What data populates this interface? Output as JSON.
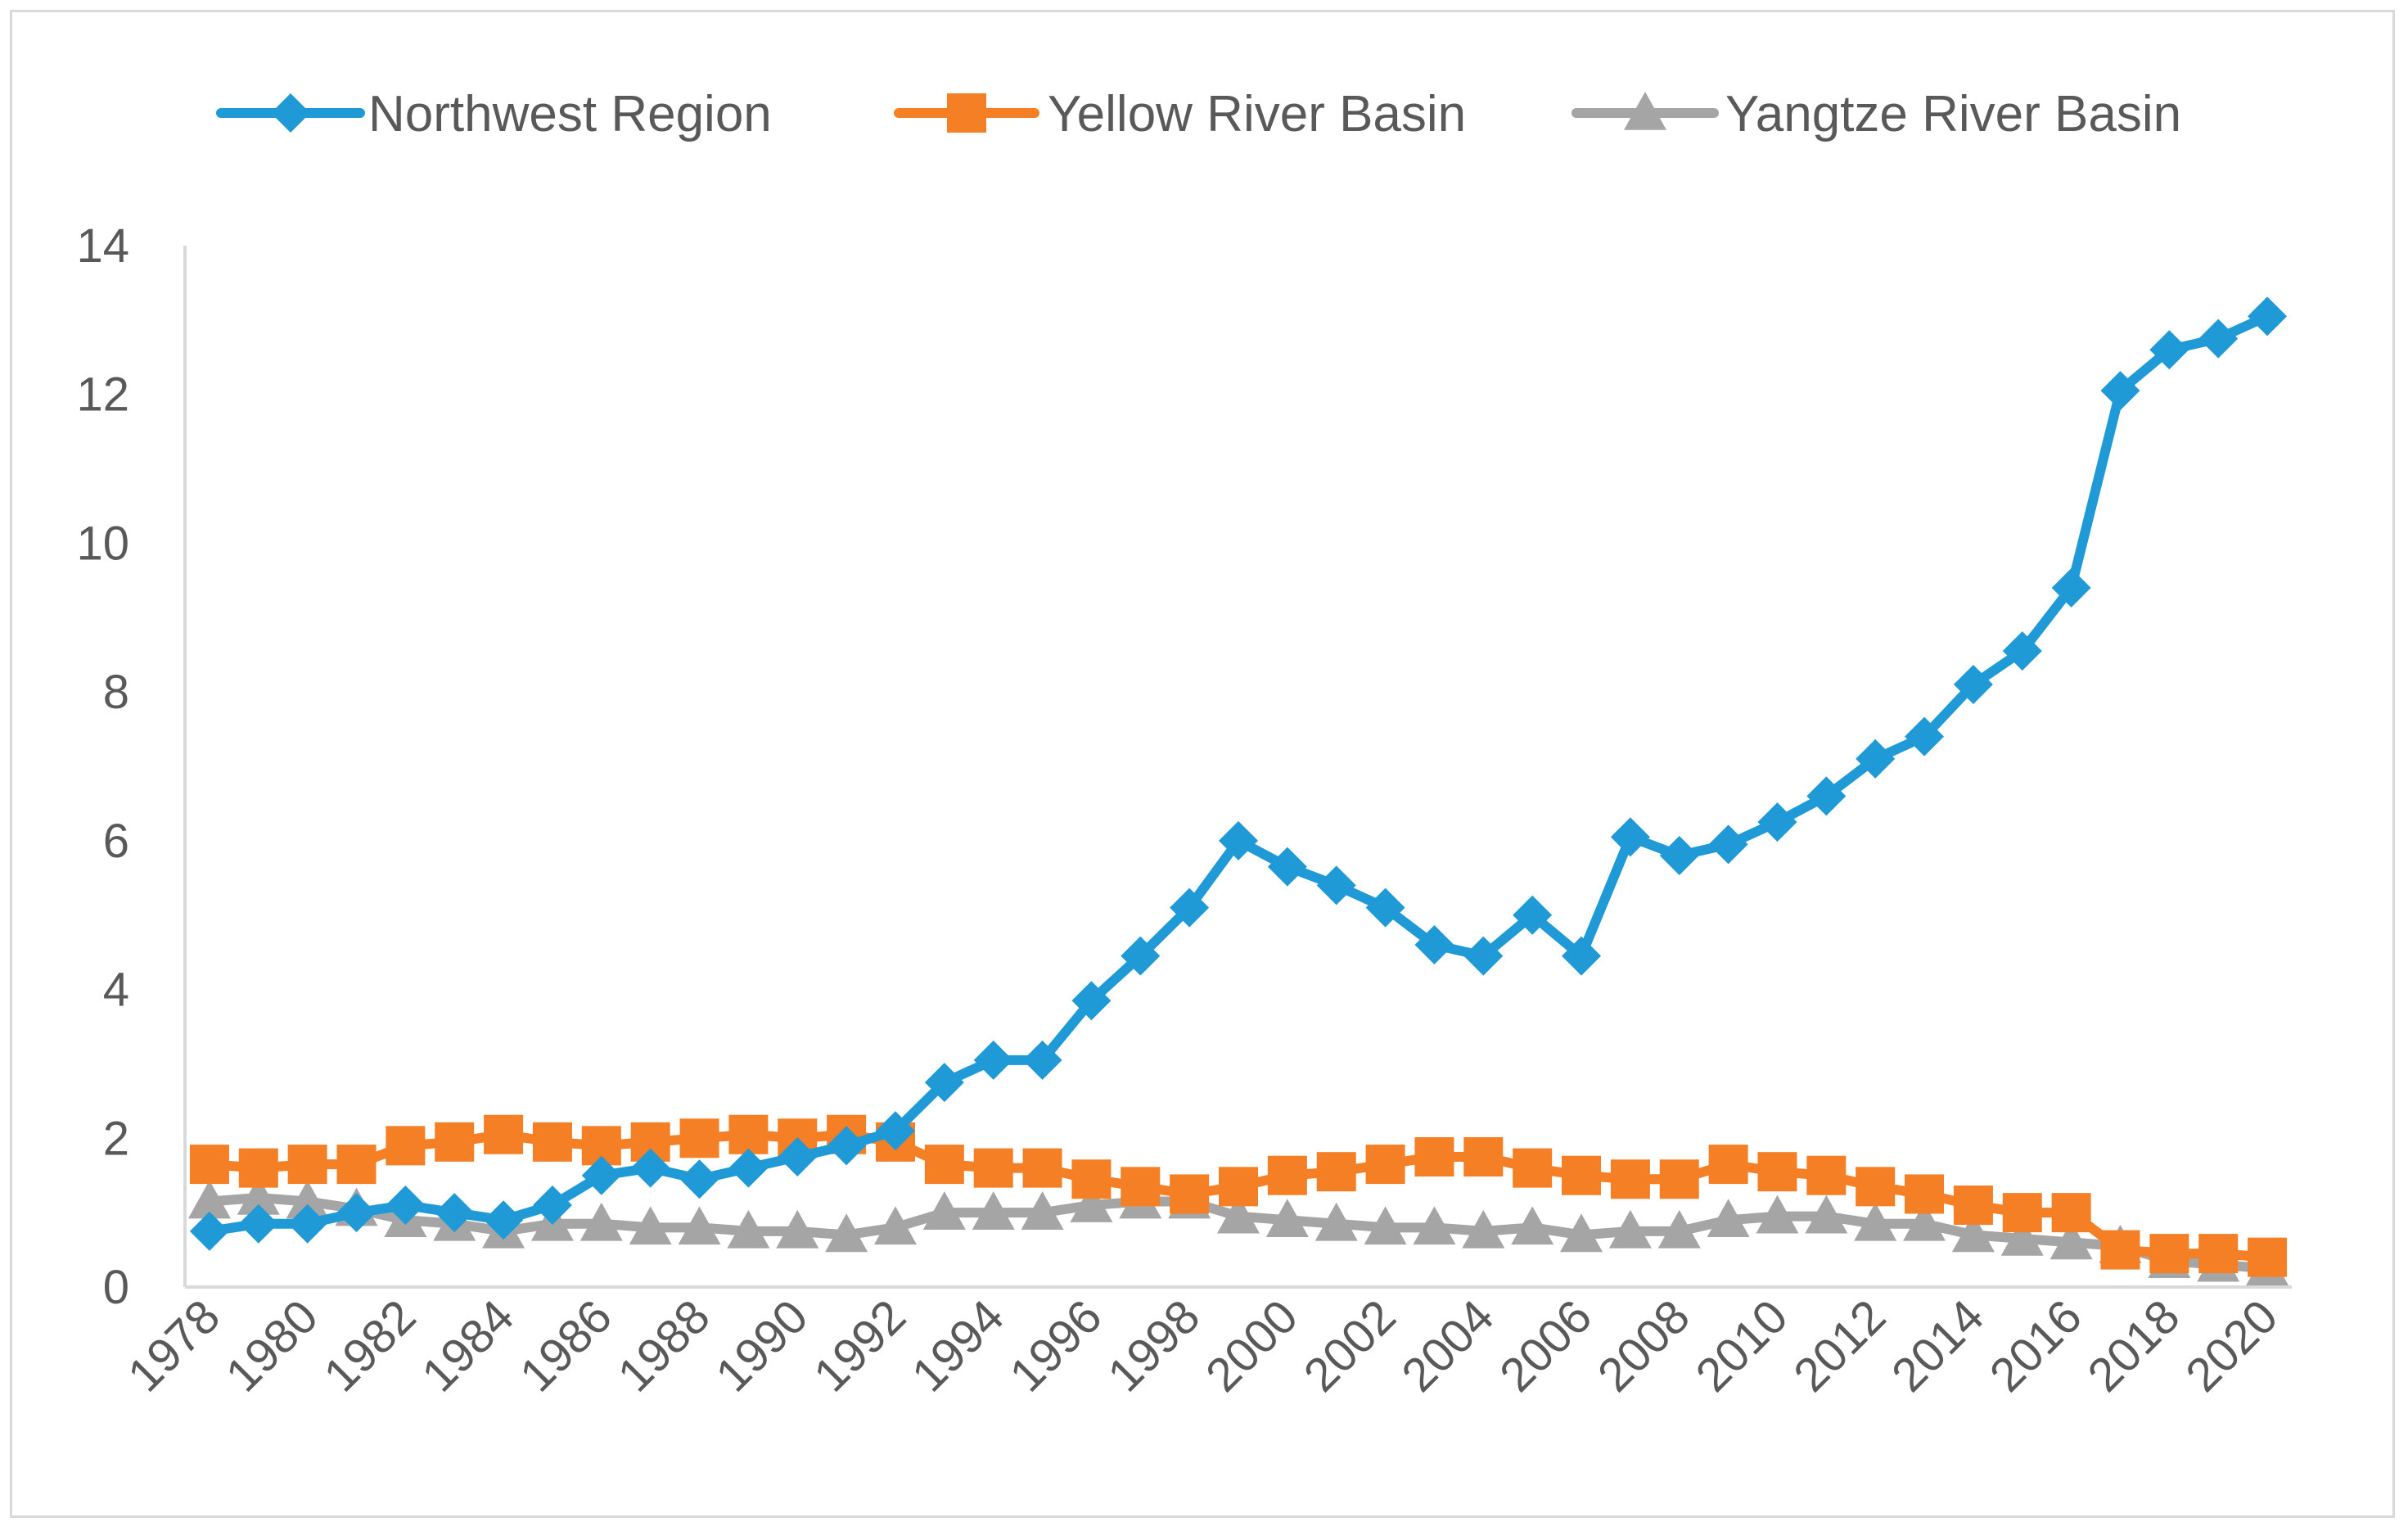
{
  "chart_data": {
    "type": "line",
    "title": "",
    "xlabel": "",
    "ylabel": "",
    "ylim": [
      0,
      14
    ],
    "yticks": [
      "0",
      "2",
      "4",
      "6",
      "8",
      "10",
      "12",
      "14"
    ],
    "grid": false,
    "legend_position": "top-center",
    "categories": [
      "1978",
      "1979",
      "1980",
      "1981",
      "1982",
      "1983",
      "1984",
      "1985",
      "1986",
      "1987",
      "1988",
      "1989",
      "1990",
      "1991",
      "1992",
      "1993",
      "1994",
      "1995",
      "1996",
      "1997",
      "1998",
      "1999",
      "2000",
      "2001",
      "2002",
      "2003",
      "2004",
      "2005",
      "2006",
      "2007",
      "2008",
      "2009",
      "2010",
      "2011",
      "2012",
      "2013",
      "2014",
      "2015",
      "2016",
      "2017",
      "2018",
      "2019",
      "2020"
    ],
    "xtick_labels": [
      "1978",
      "1980",
      "1982",
      "1984",
      "1986",
      "1988",
      "1990",
      "1992",
      "1994",
      "1996",
      "1998",
      "2000",
      "2002",
      "2004",
      "2006",
      "2008",
      "2010",
      "2012",
      "2014",
      "2016",
      "2018",
      "2020"
    ],
    "series": [
      {
        "name": "Northwest Region",
        "color": "#1f9ad6",
        "marker": "diamond",
        "values": [
          0.75,
          0.85,
          0.85,
          1.0,
          1.1,
          1.0,
          0.9,
          1.1,
          1.5,
          1.6,
          1.45,
          1.6,
          1.75,
          1.9,
          2.1,
          2.75,
          3.05,
          3.05,
          3.85,
          4.45,
          5.1,
          6.0,
          5.65,
          5.4,
          5.1,
          4.6,
          4.45,
          5.0,
          4.45,
          6.05,
          5.8,
          5.95,
          6.25,
          6.6,
          7.1,
          7.4,
          8.1,
          8.55,
          9.4,
          12.05,
          12.6,
          12.75,
          13.05
        ]
      },
      {
        "name": "Yellow River Basin",
        "color": "#f47f24",
        "marker": "square",
        "values": [
          1.65,
          1.6,
          1.65,
          1.65,
          1.9,
          1.95,
          2.05,
          1.95,
          1.9,
          1.95,
          2.0,
          2.05,
          2.0,
          2.05,
          1.95,
          1.65,
          1.6,
          1.6,
          1.45,
          1.35,
          1.25,
          1.35,
          1.5,
          1.55,
          1.65,
          1.75,
          1.75,
          1.6,
          1.5,
          1.45,
          1.45,
          1.65,
          1.55,
          1.5,
          1.35,
          1.25,
          1.1,
          1.0,
          1.0,
          0.5,
          0.45,
          0.45,
          0.4
        ]
      },
      {
        "name": "Yangtze River Basin",
        "color": "#a5a5a5",
        "marker": "triangle",
        "values": [
          1.15,
          1.2,
          1.15,
          1.05,
          0.9,
          0.85,
          0.75,
          0.85,
          0.85,
          0.8,
          0.8,
          0.75,
          0.75,
          0.7,
          0.8,
          1.0,
          1.0,
          1.0,
          1.1,
          1.15,
          1.15,
          0.95,
          0.9,
          0.85,
          0.8,
          0.8,
          0.75,
          0.8,
          0.7,
          0.75,
          0.75,
          0.9,
          0.95,
          0.95,
          0.85,
          0.85,
          0.7,
          0.65,
          0.6,
          0.55,
          0.35,
          0.3,
          0.25
        ]
      }
    ]
  }
}
